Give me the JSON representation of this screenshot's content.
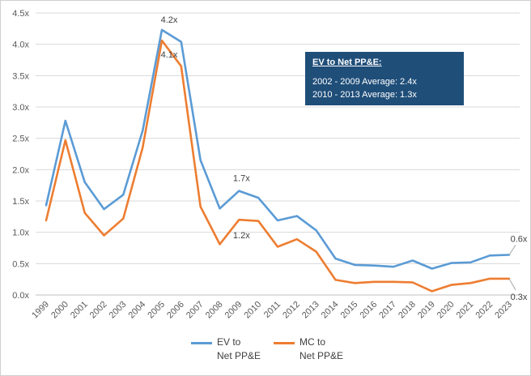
{
  "chart_data": {
    "type": "line",
    "title": "",
    "xlabel": "",
    "ylabel": "",
    "categories": [
      "1999",
      "2000",
      "2001",
      "2002",
      "2003",
      "2004",
      "2005",
      "2006",
      "2007",
      "2008",
      "2009",
      "2010",
      "2011",
      "2012",
      "2013",
      "2014",
      "2015",
      "2016",
      "2017",
      "2018",
      "2019",
      "2020",
      "2021",
      "2022",
      "2023"
    ],
    "y_ticks": [
      "0.0x",
      "0.5x",
      "1.0x",
      "1.5x",
      "2.0x",
      "2.5x",
      "3.0x",
      "3.5x",
      "4.0x",
      "4.5x"
    ],
    "ylim": [
      0,
      4.5
    ],
    "grid": true,
    "legend_position": "bottom",
    "series": [
      {
        "name": "EV to\nNet PP&E",
        "color": "#5b9bd5",
        "values": [
          1.43,
          2.78,
          1.8,
          1.37,
          1.6,
          2.62,
          4.23,
          4.04,
          2.15,
          1.38,
          1.66,
          1.55,
          1.19,
          1.26,
          1.03,
          0.58,
          0.48,
          0.47,
          0.45,
          0.55,
          0.42,
          0.51,
          0.52,
          0.63,
          0.64
        ]
      },
      {
        "name": "MC to\nNet PP&E",
        "color": "#ed7d31",
        "values": [
          1.19,
          2.47,
          1.31,
          0.95,
          1.22,
          2.35,
          4.06,
          3.65,
          1.41,
          0.81,
          1.2,
          1.18,
          0.77,
          0.89,
          0.69,
          0.24,
          0.19,
          0.21,
          0.21,
          0.2,
          0.06,
          0.16,
          0.19,
          0.26,
          0.26
        ]
      }
    ],
    "annotations": [
      {
        "series": 0,
        "index": 6,
        "text": "4.2x"
      },
      {
        "series": 1,
        "index": 6,
        "text": "4.1x"
      },
      {
        "series": 0,
        "index": 10,
        "text": "1.7x"
      },
      {
        "series": 1,
        "index": 10,
        "text": "1.2x"
      },
      {
        "series": 0,
        "index": 24,
        "text": "0.6x"
      },
      {
        "series": 1,
        "index": 24,
        "text": "0.3x"
      }
    ]
  },
  "callout": {
    "title": "EV to Net PP&E:",
    "line1": "2002 - 2009 Average: 2.4x",
    "line2": "2010 - 2013 Average: 1.3x"
  }
}
